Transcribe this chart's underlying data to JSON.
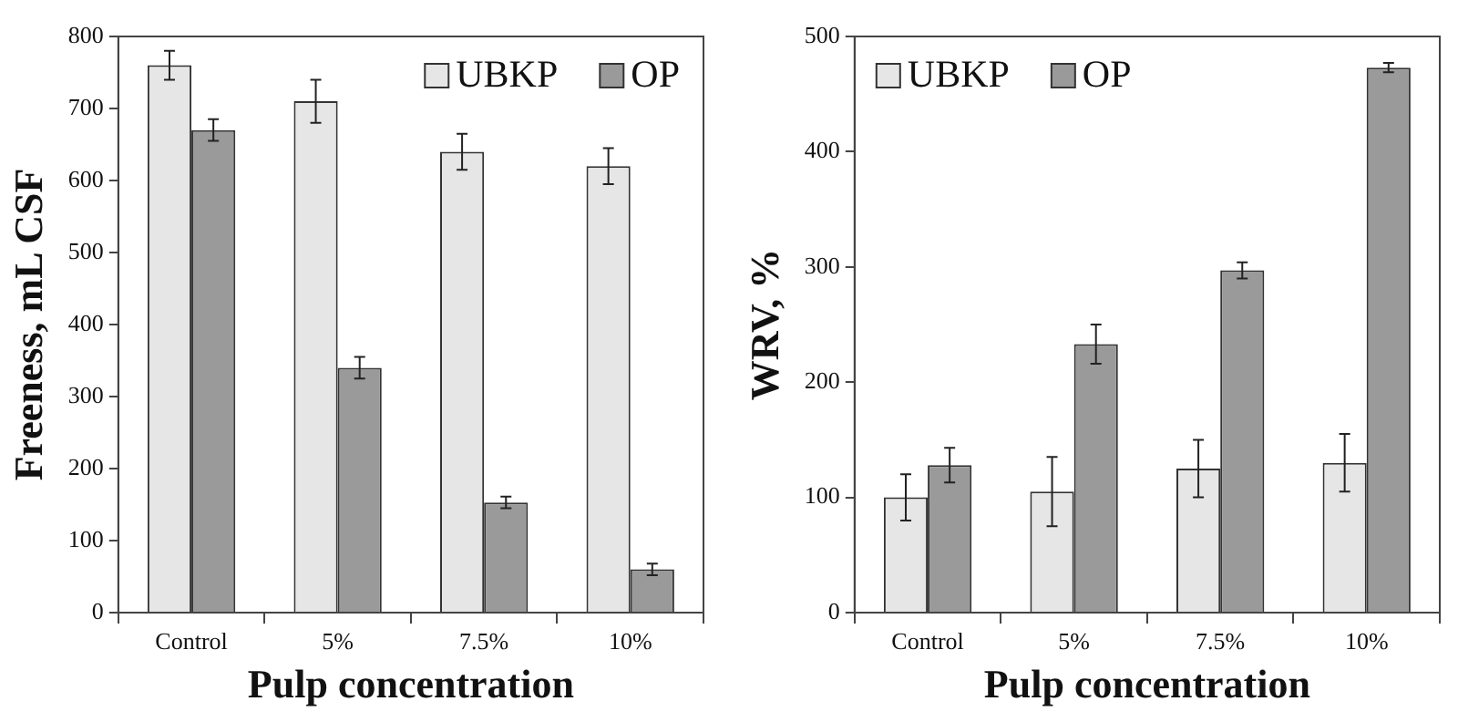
{
  "chart_data": [
    {
      "type": "bar",
      "categories": [
        "Control",
        "5%",
        "7.5%",
        "10%"
      ],
      "xlabel": "Pulp concentration",
      "ylabel": "Freeness, mL CSF",
      "ylim": [
        0,
        800
      ],
      "yticks": [
        0,
        100,
        200,
        300,
        400,
        500,
        600,
        700,
        800
      ],
      "legend": "top right",
      "series": [
        {
          "name": "UBKP",
          "color": "#e6e6e6",
          "values": [
            760,
            710,
            640,
            620
          ],
          "errors": [
            20,
            30,
            25,
            25
          ]
        },
        {
          "name": "OP",
          "color": "#9a9a9a",
          "values": [
            670,
            340,
            153,
            60
          ],
          "errors": [
            15,
            15,
            8,
            8
          ]
        }
      ]
    },
    {
      "type": "bar",
      "categories": [
        "Control",
        "5%",
        "7.5%",
        "10%"
      ],
      "xlabel": "Pulp concentration",
      "ylabel": "WRV, %",
      "ylim": [
        0,
        500
      ],
      "yticks": [
        0,
        100,
        200,
        300,
        400,
        500
      ],
      "legend": "top left",
      "series": [
        {
          "name": "UBKP",
          "color": "#e6e6e6",
          "values": [
            100,
            105,
            125,
            130
          ],
          "errors": [
            20,
            30,
            25,
            25
          ]
        },
        {
          "name": "OP",
          "color": "#9a9a9a",
          "values": [
            128,
            233,
            297,
            473
          ],
          "errors": [
            15,
            17,
            7,
            4
          ]
        }
      ]
    }
  ]
}
